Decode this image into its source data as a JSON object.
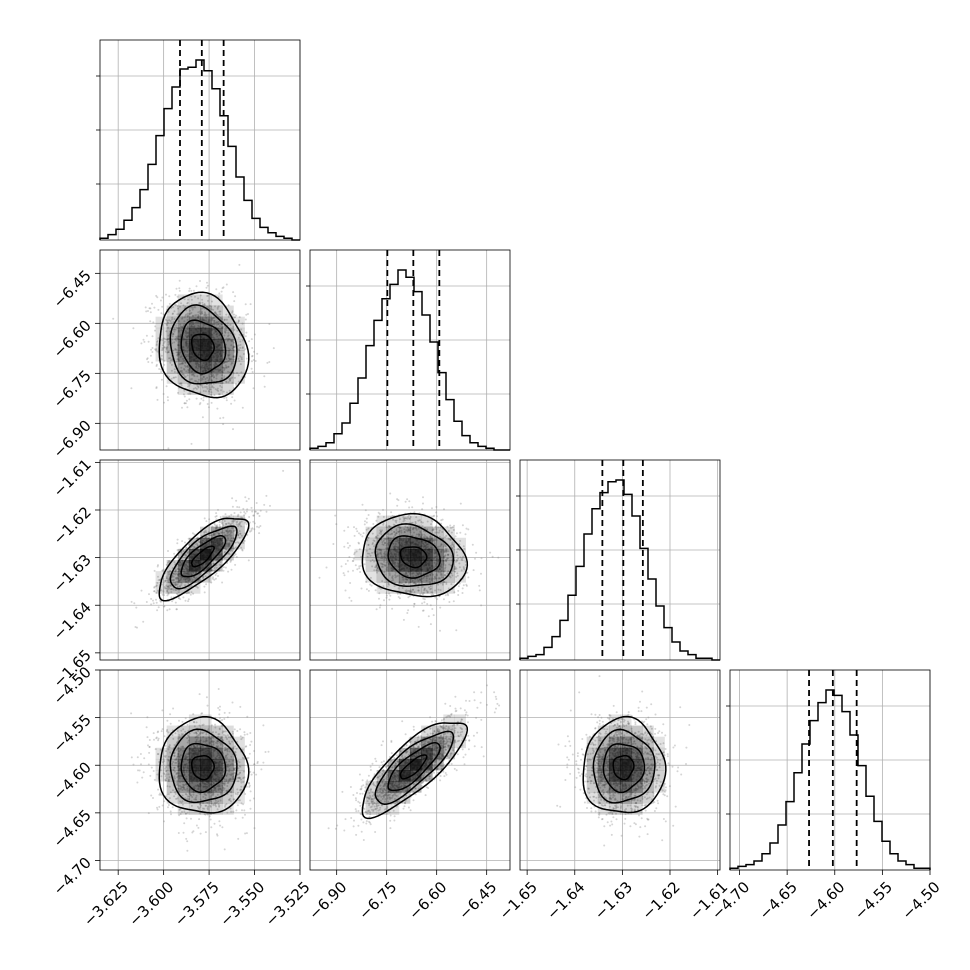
{
  "chart_data": {
    "type": "corner",
    "grid": true,
    "parameters": [
      {
        "range": [
          -3.635,
          -3.525
        ],
        "ticks": [
          -3.625,
          -3.6,
          -3.575,
          -3.55,
          -3.525
        ],
        "tick_labels": [
          "−3.625",
          "−3.600",
          "−3.575",
          "−3.550",
          "−3.525"
        ],
        "mean": -3.5785,
        "std": 0.0122,
        "quantiles": [
          -3.591,
          -3.579,
          -3.567
        ],
        "histogram": [
          1,
          3,
          6,
          11,
          18,
          28,
          42,
          58,
          73,
          85,
          95,
          96,
          100,
          94,
          84,
          69,
          52,
          35,
          22,
          12,
          7,
          4,
          2,
          1,
          0
        ]
      },
      {
        "range": [
          -6.98,
          -6.38
        ],
        "ticks": [
          -6.9,
          -6.75,
          -6.6,
          -6.45
        ],
        "tick_labels": [
          "−6.90",
          "−6.75",
          "−6.60",
          "−6.45"
        ],
        "mean": -6.67,
        "std": 0.078,
        "quantiles": [
          -6.748,
          -6.67,
          -6.592
        ],
        "histogram": [
          1,
          2,
          4,
          9,
          15,
          26,
          40,
          58,
          72,
          84,
          92,
          100,
          96,
          88,
          75,
          60,
          43,
          28,
          16,
          8,
          4,
          2,
          1,
          0,
          0
        ]
      },
      {
        "range": [
          -1.6515,
          -1.6095
        ],
        "ticks": [
          -1.65,
          -1.64,
          -1.63,
          -1.62,
          -1.61
        ],
        "tick_labels": [
          "−1.65",
          "−1.64",
          "−1.63",
          "−1.62",
          "−1.61"
        ],
        "mean": -1.6298,
        "std": 0.0043,
        "quantiles": [
          -1.6342,
          -1.6298,
          -1.6257
        ],
        "histogram": [
          1,
          2,
          3,
          7,
          13,
          22,
          36,
          52,
          70,
          84,
          93,
          99,
          100,
          92,
          80,
          62,
          45,
          30,
          18,
          10,
          5,
          3,
          1,
          1,
          0
        ]
      },
      {
        "range": [
          -4.71,
          -4.5
        ],
        "ticks": [
          -4.7,
          -4.65,
          -4.6,
          -4.55,
          -4.5
        ],
        "tick_labels": [
          "−4.70",
          "−4.65",
          "−4.60",
          "−4.55",
          "−4.50"
        ],
        "y_tick_labels": [
          "−4.50",
          "−4.55",
          "−4.60",
          "−4.65",
          "−4.70"
        ],
        "mean": -4.602,
        "std": 0.025,
        "quantiles": [
          -4.627,
          -4.602,
          -4.577
        ],
        "histogram": [
          1,
          2,
          3,
          5,
          9,
          15,
          25,
          38,
          54,
          70,
          83,
          93,
          100,
          97,
          88,
          75,
          58,
          41,
          27,
          16,
          9,
          5,
          3,
          1,
          1
        ]
      }
    ],
    "correlations": {
      "1-0": -0.15,
      "2-0": 0.78,
      "2-1": -0.12,
      "3-0": -0.03,
      "3-1": 0.8,
      "3-2": 0.02
    },
    "contour_levels_sigma": [
      0.5,
      1.0,
      1.5,
      2.0
    ],
    "colors": {
      "points": "#888888",
      "density": "#000000",
      "lines": "#000000",
      "grid": "#b0b0b0"
    }
  }
}
